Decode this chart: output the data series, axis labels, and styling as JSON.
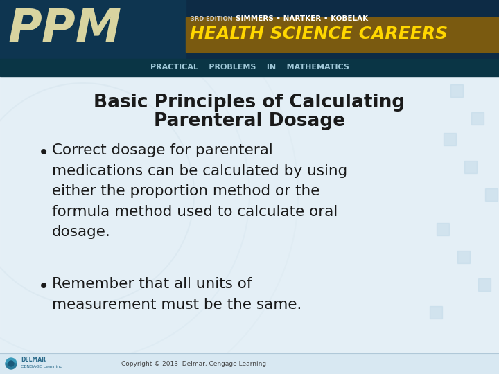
{
  "title_line1": "Basic Principles of Calculating",
  "title_line2": "Parenteral Dosage",
  "bullet1_lines": [
    "Correct dosage for parenteral",
    "medications can be calculated by using",
    "either the proportion method or the",
    "formula method used to calculate oral",
    "dosage."
  ],
  "bullet2_lines": [
    "Remember that all units of",
    "measurement must be the same."
  ],
  "body_bg_color": "#dce8f0",
  "title_color": "#1a1a1a",
  "bullet_color": "#1a1a1a",
  "copyright_text": "Copyright © 2013  Delmar, Cengage Learning",
  "edition_text": "3RD EDITION",
  "authors_text": "SIMMERS • NARTKER • KOBELAK",
  "practical_text": "PRACTICAL    PROBLEMS    IN    MATHEMATICS",
  "health_text": "HEALTH SCIENCE CAREERS",
  "ppm_text": "PPM"
}
